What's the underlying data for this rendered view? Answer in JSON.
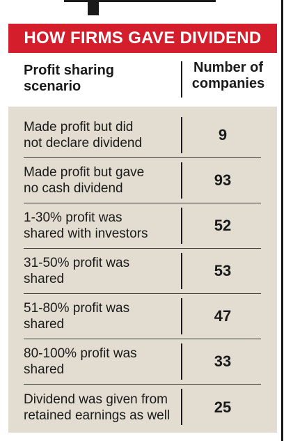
{
  "title": "HOW FIRMS GAVE DIVIDEND",
  "columns": {
    "scenario": "Profit sharing\nscenario",
    "count": "Number of\ncompanies"
  },
  "rows": [
    {
      "label": "Made profit but did\nnot declare dividend",
      "value": "9"
    },
    {
      "label": "Made profit but gave\nno cash dividend",
      "value": "93"
    },
    {
      "label": "1-30% profit was\nshared with investors",
      "value": "52"
    },
    {
      "label": "31-50% profit was\nshared",
      "value": "53"
    },
    {
      "label": "51-80% profit was\nshared",
      "value": "47"
    },
    {
      "label": "80-100% profit was\nshared",
      "value": "33"
    },
    {
      "label": "Dividend was given from\nretained earnings as well",
      "value": "25"
    }
  ],
  "colors": {
    "title_bg": "#d41e2c",
    "table_bg": "#e3ddd1",
    "text": "#1a1a1a"
  },
  "chart_data": {
    "type": "table",
    "title": "HOW FIRMS GAVE DIVIDEND",
    "columns": [
      "Profit sharing scenario",
      "Number of companies"
    ],
    "categories": [
      "Made profit but did not declare dividend",
      "Made profit but gave no cash dividend",
      "1-30% profit was shared with investors",
      "31-50% profit was shared",
      "51-80% profit was shared",
      "80-100% profit was shared",
      "Dividend was given from retained earnings as well"
    ],
    "values": [
      9,
      93,
      52,
      53,
      47,
      33,
      25
    ]
  }
}
